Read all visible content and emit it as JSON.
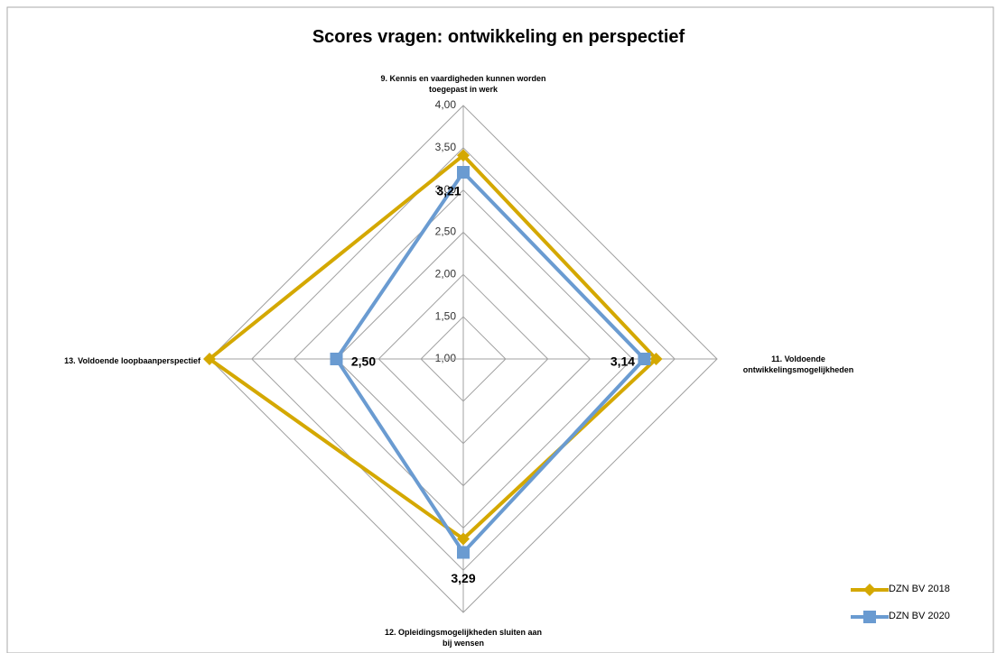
{
  "chart_data": {
    "type": "radar",
    "title": "Scores vragen: ontwikkeling en perspectief",
    "categories": [
      "9. Kennis en vaardigheden kunnen worden toegepast in werk",
      "11. Voldoende ontwikkelingsmogelijkheden",
      "12. Opleidingsmogelijkheden sluiten aan bij wensen",
      "13. Voldoende loopbaanperspectief"
    ],
    "series": [
      {
        "name": "DZN BV 2018",
        "color": "#d4a800",
        "marker": "diamond",
        "values": [
          3.41,
          3.28,
          3.13,
          4.0
        ]
      },
      {
        "name": "DZN BV 2020",
        "color": "#6a9bd1",
        "marker": "square",
        "values": [
          3.21,
          3.14,
          3.29,
          2.5
        ],
        "value_labels": [
          "3,21",
          "3,14",
          "3,29",
          "2,50"
        ]
      }
    ],
    "rlim": [
      1,
      4
    ],
    "rticks": [
      {
        "value": 1,
        "label": "1,00"
      },
      {
        "value": 1.5,
        "label": "1,50"
      },
      {
        "value": 2,
        "label": "2,00"
      },
      {
        "value": 2.5,
        "label": "2,50"
      },
      {
        "value": 3,
        "label": "3,00"
      },
      {
        "value": 3.5,
        "label": "3,50"
      },
      {
        "value": 4,
        "label": "4,00"
      }
    ],
    "grid": true,
    "legend": "bottom-right"
  }
}
